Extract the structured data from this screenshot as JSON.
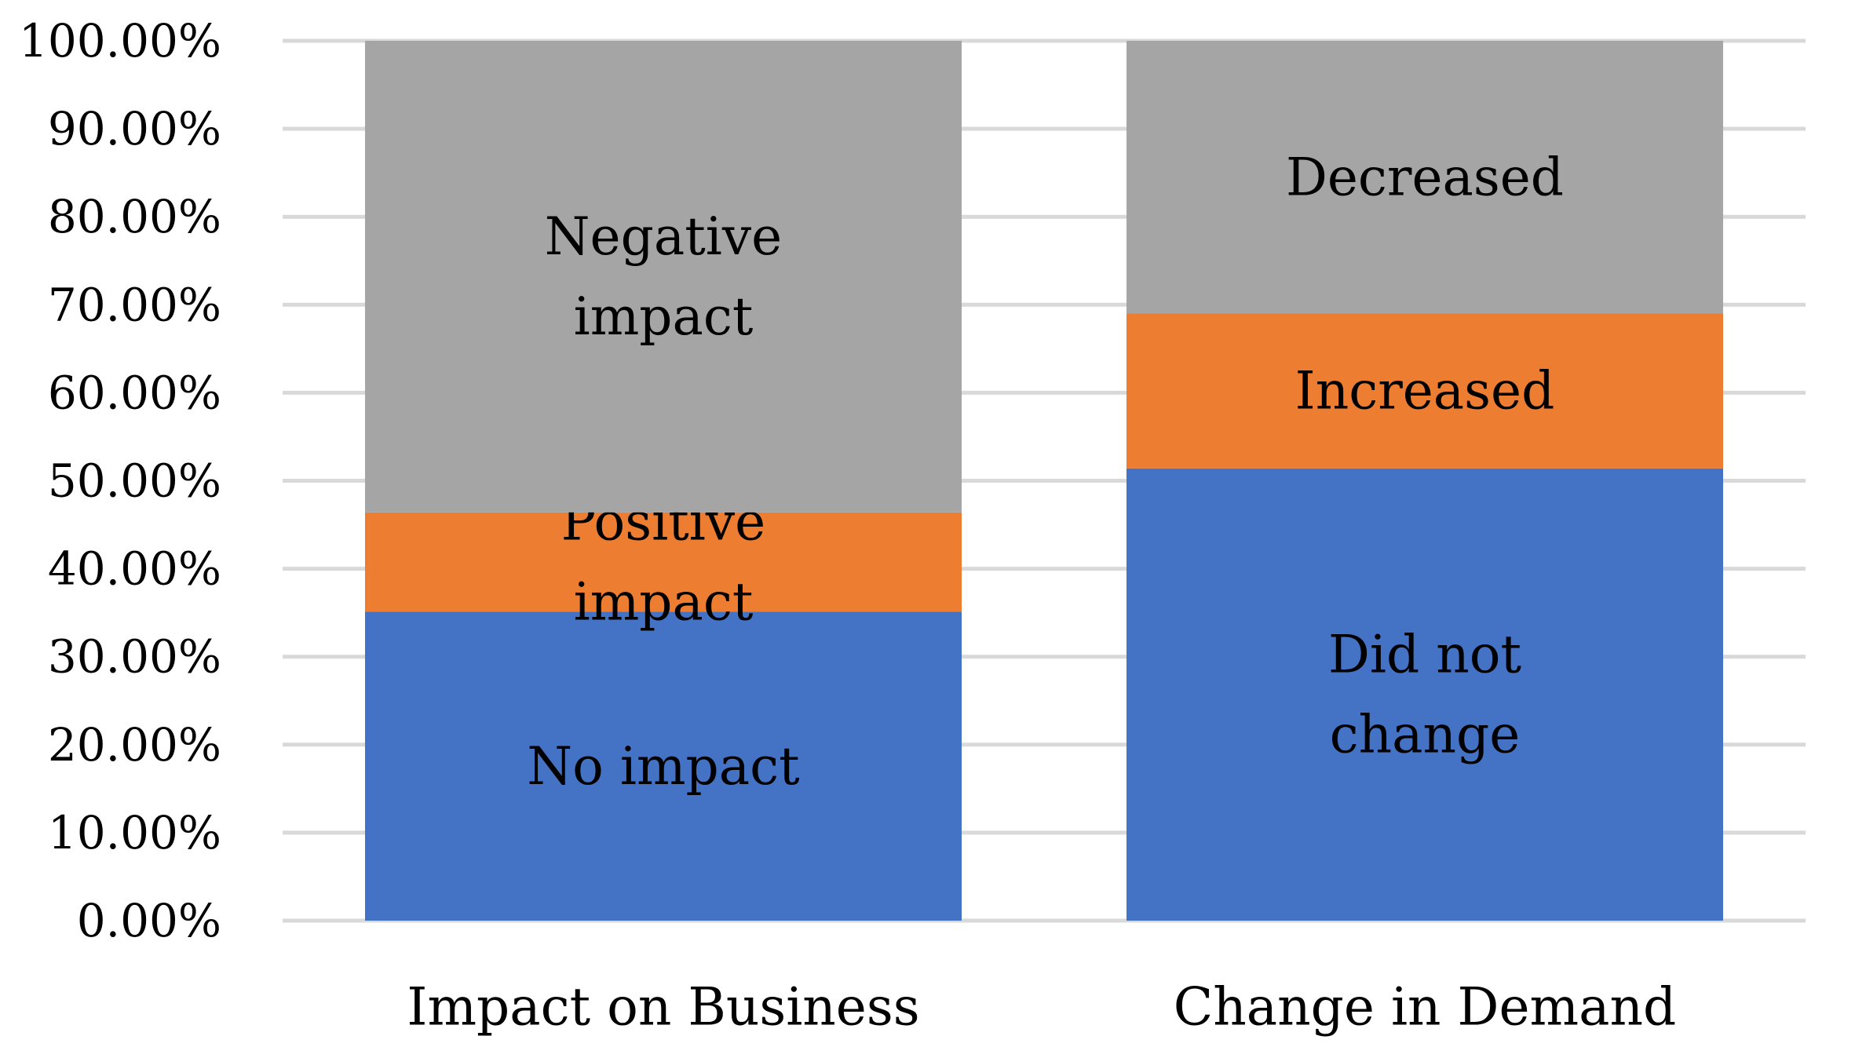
{
  "chart_data": {
    "type": "bar",
    "stacked": true,
    "categories": [
      "Impact on Business",
      "Change in Demand"
    ],
    "ylim": [
      0,
      100
    ],
    "ytick_step": 10,
    "ytick_labels": [
      "0.00%",
      "10.00%",
      "20.00%",
      "30.00%",
      "40.00%",
      "50.00%",
      "60.00%",
      "70.00%",
      "80.00%",
      "90.00%",
      "100.00%"
    ],
    "grid": true,
    "legend": "none",
    "xlabel": "",
    "ylabel": "",
    "title": "",
    "bars": [
      {
        "category": "Impact on Business",
        "segments": [
          {
            "label": [
              "No impact"
            ],
            "value": 35.1,
            "color": "#4472c4"
          },
          {
            "label": [
              "Positive",
              "impact"
            ],
            "value": 11.3,
            "color": "#ed7d31"
          },
          {
            "label": [
              "Negative",
              "impact"
            ],
            "value": 53.6,
            "color": "#a5a5a5"
          }
        ]
      },
      {
        "category": "Change in Demand",
        "segments": [
          {
            "label": [
              "Did not",
              "change"
            ],
            "value": 51.4,
            "color": "#4472c4"
          },
          {
            "label": [
              "Increased"
            ],
            "value": 17.6,
            "color": "#ed7d31"
          },
          {
            "label": [
              "Decreased"
            ],
            "value": 31.0,
            "color": "#a5a5a5"
          }
        ]
      }
    ]
  }
}
